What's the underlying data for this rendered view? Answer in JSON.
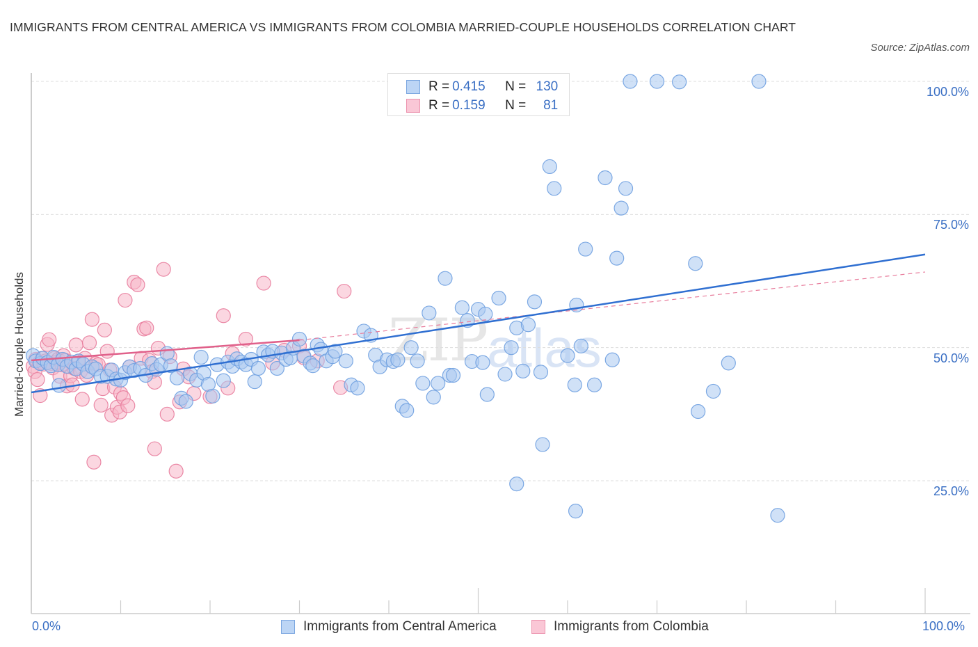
{
  "header": {
    "title": "IMMIGRANTS FROM CENTRAL AMERICA VS IMMIGRANTS FROM COLOMBIA MARRIED-COUPLE HOUSEHOLDS CORRELATION CHART",
    "source": "Source: ZipAtlas.com"
  },
  "watermark": {
    "zip": "ZIP",
    "atlas": "atlas"
  },
  "stats_legend": [
    {
      "r_label": "R = ",
      "r_value": "0.415",
      "n_label": "N = ",
      "n_value": "130",
      "color": "#a9c8f0"
    },
    {
      "r_label": "R = ",
      "r_value": "0.159",
      "n_label": "N = ",
      "n_value": "81",
      "color": "#f7b6c9"
    }
  ],
  "chart_data": {
    "type": "scatter",
    "title": "Immigrants from Central America vs Immigrants from Colombia Married-couple Households Correlation Chart",
    "xlabel": "",
    "ylabel": "Married-couple Households",
    "xlim": [
      0,
      100
    ],
    "ylim": [
      0,
      101.5
    ],
    "x_tick_labels": [
      "0.0%",
      "100.0%"
    ],
    "y_ticks": [
      25,
      50,
      75,
      100
    ],
    "y_tick_labels": [
      "25.0%",
      "50.0%",
      "75.0%",
      "100.0%"
    ],
    "grid": true,
    "legend_position": "bottom",
    "series": [
      {
        "name": "Immigrants from Central America",
        "color": "#6fa0e0",
        "fill": "#a9c8f0",
        "r": 0.415,
        "n": 130,
        "trend": {
          "x": [
            0,
            100
          ],
          "y": [
            41.6,
            67.5
          ]
        },
        "points": [
          [
            0.2,
            48.5
          ],
          [
            0.5,
            47.5
          ],
          [
            1.0,
            47.0
          ],
          [
            1.3,
            48.0
          ],
          [
            1.8,
            47.2
          ],
          [
            2.2,
            46.6
          ],
          [
            2.5,
            48.2
          ],
          [
            3.0,
            46.8
          ],
          [
            3.5,
            47.8
          ],
          [
            3.1,
            42.9
          ],
          [
            4.0,
            46.5
          ],
          [
            4.5,
            47.3
          ],
          [
            5.0,
            46.0
          ],
          [
            5.3,
            47.5
          ],
          [
            5.8,
            46.9
          ],
          [
            6.3,
            45.5
          ],
          [
            6.8,
            46.4
          ],
          [
            7.2,
            46.0
          ],
          [
            7.8,
            44.6
          ],
          [
            8.5,
            44.6
          ],
          [
            9.0,
            45.8
          ],
          [
            9.5,
            44.1
          ],
          [
            10.0,
            43.9
          ],
          [
            10.5,
            45.3
          ],
          [
            11.0,
            46.4
          ],
          [
            11.5,
            45.7
          ],
          [
            12.2,
            46.1
          ],
          [
            12.8,
            44.8
          ],
          [
            13.5,
            47.0
          ],
          [
            14.0,
            45.9
          ],
          [
            14.5,
            46.8
          ],
          [
            15.2,
            48.9
          ],
          [
            15.6,
            46.6
          ],
          [
            16.3,
            44.3
          ],
          [
            16.8,
            40.5
          ],
          [
            17.3,
            39.9
          ],
          [
            17.8,
            45.1
          ],
          [
            18.5,
            43.9
          ],
          [
            19.0,
            48.2
          ],
          [
            19.3,
            45.2
          ],
          [
            19.8,
            43.1
          ],
          [
            20.3,
            40.9
          ],
          [
            20.8,
            46.8
          ],
          [
            21.5,
            43.8
          ],
          [
            22.0,
            47.3
          ],
          [
            22.5,
            46.5
          ],
          [
            23.0,
            47.9
          ],
          [
            23.5,
            47.3
          ],
          [
            24.0,
            46.8
          ],
          [
            24.6,
            47.8
          ],
          [
            25.0,
            43.6
          ],
          [
            25.4,
            46.1
          ],
          [
            26.0,
            49.2
          ],
          [
            26.5,
            48.6
          ],
          [
            27.0,
            49.3
          ],
          [
            27.5,
            46.1
          ],
          [
            28.0,
            49.0
          ],
          [
            28.5,
            47.8
          ],
          [
            29.0,
            48.1
          ],
          [
            29.3,
            49.9
          ],
          [
            30.0,
            51.6
          ],
          [
            30.5,
            48.4
          ],
          [
            31.2,
            47.1
          ],
          [
            31.5,
            46.6
          ],
          [
            32.0,
            50.5
          ],
          [
            32.4,
            49.7
          ],
          [
            33.0,
            47.5
          ],
          [
            33.7,
            48.3
          ],
          [
            34.0,
            49.3
          ],
          [
            35.2,
            47.5
          ],
          [
            35.8,
            43.0
          ],
          [
            36.5,
            42.4
          ],
          [
            37.2,
            53.1
          ],
          [
            38.0,
            52.3
          ],
          [
            38.5,
            48.6
          ],
          [
            39.0,
            46.4
          ],
          [
            39.8,
            47.7
          ],
          [
            40.5,
            47.4
          ],
          [
            41.0,
            47.7
          ],
          [
            41.5,
            39.0
          ],
          [
            42.0,
            38.2
          ],
          [
            42.5,
            50.0
          ],
          [
            43.2,
            47.5
          ],
          [
            43.8,
            43.3
          ],
          [
            44.5,
            56.5
          ],
          [
            45.0,
            40.7
          ],
          [
            45.5,
            43.3
          ],
          [
            46.3,
            63.0
          ],
          [
            46.8,
            44.8
          ],
          [
            47.2,
            44.8
          ],
          [
            48.2,
            57.5
          ],
          [
            48.8,
            55.1
          ],
          [
            49.3,
            47.4
          ],
          [
            50.0,
            57.2
          ],
          [
            50.5,
            47.2
          ],
          [
            50.8,
            56.3
          ],
          [
            51.0,
            41.2
          ],
          [
            52.3,
            59.3
          ],
          [
            53.0,
            45.0
          ],
          [
            53.7,
            50.0
          ],
          [
            54.3,
            53.7
          ],
          [
            55.0,
            45.6
          ],
          [
            55.6,
            54.3
          ],
          [
            56.3,
            58.6
          ],
          [
            57.0,
            45.4
          ],
          [
            57.2,
            31.8
          ],
          [
            58.0,
            84.0
          ],
          [
            58.5,
            79.9
          ],
          [
            60.0,
            48.5
          ],
          [
            60.8,
            43.0
          ],
          [
            61.0,
            58.0
          ],
          [
            61.5,
            50.3
          ],
          [
            62.0,
            68.5
          ],
          [
            63.0,
            43.0
          ],
          [
            64.2,
            81.9
          ],
          [
            65.0,
            47.7
          ],
          [
            65.5,
            66.8
          ],
          [
            66.0,
            76.2
          ],
          [
            66.5,
            79.9
          ],
          [
            67.0,
            100.0
          ],
          [
            70.0,
            100.0
          ],
          [
            72.5,
            99.9
          ],
          [
            74.3,
            65.8
          ],
          [
            74.6,
            38.0
          ],
          [
            76.3,
            41.8
          ],
          [
            78.0,
            47.1
          ],
          [
            81.4,
            100.0
          ],
          [
            83.5,
            18.5
          ],
          [
            54.3,
            24.4
          ],
          [
            60.9,
            19.3
          ]
        ]
      },
      {
        "name": "Immigrants from Colombia",
        "color": "#e87c9c",
        "fill": "#f7b6c9",
        "r": 0.159,
        "n": 81,
        "trend": {
          "x": [
            0,
            30
          ],
          "y": [
            47.6,
            51.4
          ]
        },
        "trend_dashed": {
          "x": [
            30,
            100
          ],
          "y": [
            51.4,
            64.2
          ]
        },
        "points": [
          [
            0.2,
            46.5
          ],
          [
            0.4,
            45.5
          ],
          [
            0.5,
            47.8
          ],
          [
            0.7,
            44.0
          ],
          [
            0.9,
            47.2
          ],
          [
            1.0,
            41.0
          ],
          [
            1.2,
            48.0
          ],
          [
            1.4,
            46.9
          ],
          [
            1.6,
            47.5
          ],
          [
            1.8,
            50.6
          ],
          [
            2.0,
            51.5
          ],
          [
            2.2,
            47.0
          ],
          [
            2.4,
            46.2
          ],
          [
            2.6,
            48.0
          ],
          [
            2.8,
            47.3
          ],
          [
            3.0,
            47.8
          ],
          [
            3.2,
            44.6
          ],
          [
            3.4,
            46.8
          ],
          [
            3.6,
            48.5
          ],
          [
            3.8,
            47.6
          ],
          [
            4.0,
            42.8
          ],
          [
            4.2,
            46.4
          ],
          [
            4.4,
            44.7
          ],
          [
            4.6,
            43.0
          ],
          [
            4.8,
            46.1
          ],
          [
            5.0,
            50.5
          ],
          [
            5.2,
            47.4
          ],
          [
            5.5,
            45.5
          ],
          [
            5.7,
            40.3
          ],
          [
            6.0,
            48.0
          ],
          [
            6.2,
            44.8
          ],
          [
            6.5,
            50.9
          ],
          [
            6.8,
            55.3
          ],
          [
            7.0,
            28.5
          ],
          [
            7.2,
            47.0
          ],
          [
            7.5,
            46.8
          ],
          [
            7.8,
            39.2
          ],
          [
            8.0,
            42.3
          ],
          [
            8.2,
            53.3
          ],
          [
            8.5,
            49.3
          ],
          [
            8.8,
            45.8
          ],
          [
            9.0,
            37.3
          ],
          [
            9.3,
            42.6
          ],
          [
            9.6,
            38.8
          ],
          [
            9.9,
            37.9
          ],
          [
            10.0,
            41.4
          ],
          [
            10.3,
            40.6
          ],
          [
            10.5,
            58.9
          ],
          [
            10.8,
            39.1
          ],
          [
            11.0,
            46.4
          ],
          [
            11.5,
            62.3
          ],
          [
            11.9,
            61.8
          ],
          [
            12.3,
            48.0
          ],
          [
            12.6,
            53.5
          ],
          [
            12.9,
            53.7
          ],
          [
            13.2,
            47.6
          ],
          [
            13.5,
            45.5
          ],
          [
            13.8,
            31.0
          ],
          [
            14.2,
            49.9
          ],
          [
            14.8,
            64.7
          ],
          [
            15.2,
            37.5
          ],
          [
            15.5,
            48.3
          ],
          [
            16.2,
            26.8
          ],
          [
            16.6,
            39.8
          ],
          [
            17.0,
            46.0
          ],
          [
            17.6,
            44.5
          ],
          [
            18.2,
            41.4
          ],
          [
            20.0,
            40.8
          ],
          [
            21.5,
            56.0
          ],
          [
            22.5,
            48.9
          ],
          [
            24.0,
            51.6
          ],
          [
            26.0,
            62.1
          ],
          [
            27.0,
            47.1
          ],
          [
            28.3,
            49.5
          ],
          [
            30.0,
            50.3
          ],
          [
            32.0,
            47.5
          ],
          [
            34.6,
            42.5
          ],
          [
            35.0,
            60.6
          ],
          [
            30.5,
            48.1
          ],
          [
            22.0,
            42.4
          ],
          [
            13.8,
            43.5
          ]
        ]
      }
    ]
  },
  "bottom_legend": [
    {
      "label": "Immigrants from Central America",
      "color": "#a9c8f0",
      "border": "#6fa0e0"
    },
    {
      "label": "Immigrants from Colombia",
      "color": "#f7b6c9",
      "border": "#e87c9c"
    }
  ],
  "x_axis": {
    "left_label": "0.0%",
    "right_label": "100.0%"
  },
  "y_axis": {
    "title": "Married-couple Households"
  }
}
